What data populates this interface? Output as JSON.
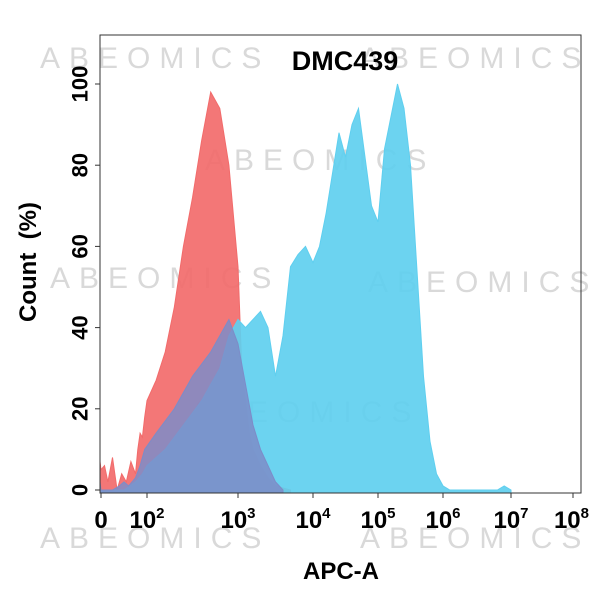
{
  "chart_data": {
    "type": "area",
    "title": "DMC439",
    "xlabel": "APC-A",
    "ylabel": "Count  (%)",
    "x_scale": "biexponential",
    "ylim": [
      0,
      100
    ],
    "y_ticks": [
      0,
      20,
      40,
      60,
      80,
      100
    ],
    "x_ticks": [
      {
        "base": "0",
        "exp": ""
      },
      {
        "base": "10",
        "exp": "2"
      },
      {
        "base": "10",
        "exp": "3"
      },
      {
        "base": "10",
        "exp": "4"
      },
      {
        "base": "10",
        "exp": "5"
      },
      {
        "base": "10",
        "exp": "6"
      },
      {
        "base": "10",
        "exp": "7"
      },
      {
        "base": "10",
        "exp": "8"
      }
    ],
    "watermark": "ABEOMICS",
    "grid": false,
    "legend": "none",
    "series": [
      {
        "color": "#f26b6b",
        "x": [
          -0.3,
          -0.15,
          0,
          0.15,
          0.3,
          0.5,
          0.7,
          0.9,
          1.1,
          1.3,
          1.5,
          1.6,
          1.7,
          1.8,
          1.9,
          2.0,
          2.1,
          2.2,
          2.3,
          2.4,
          2.5,
          2.6,
          2.7,
          2.8,
          2.9,
          3.0,
          3.05,
          3.1,
          3.15,
          3.2,
          3.3,
          3.4,
          3.5,
          3.6,
          3.7
        ],
        "y": [
          8,
          7,
          5,
          6,
          2,
          8,
          0,
          4,
          2,
          7,
          4,
          10,
          14,
          13,
          18,
          22,
          27,
          34,
          45,
          60,
          72,
          86,
          98,
          94,
          80,
          55,
          30,
          22,
          14,
          10,
          6,
          3,
          1,
          0.5,
          0
        ]
      },
      {
        "color": "#5fcfef",
        "x": [
          -0.3,
          0,
          0.5,
          1.0,
          1.5,
          1.8,
          2.0,
          2.2,
          2.4,
          2.6,
          2.7,
          2.8,
          2.9,
          3.0,
          3.1,
          3.2,
          3.3,
          3.4,
          3.5,
          3.6,
          3.7,
          3.8,
          3.9,
          4.0,
          4.1,
          4.2,
          4.3,
          4.4,
          4.5,
          4.6,
          4.7,
          4.8,
          4.9,
          5.0,
          5.1,
          5.2,
          5.3,
          5.4,
          5.5,
          5.6,
          5.7,
          5.8,
          5.9,
          6.0,
          6.1,
          6.2,
          6.5,
          6.8,
          6.9,
          7.0
        ],
        "y": [
          0,
          0,
          0,
          0,
          2,
          4,
          6,
          10,
          16,
          22,
          26,
          30,
          38,
          42,
          40,
          42,
          44,
          40,
          28,
          38,
          55,
          58,
          60,
          56,
          60,
          68,
          78,
          88,
          82,
          90,
          94,
          82,
          70,
          66,
          84,
          92,
          100,
          94,
          80,
          54,
          28,
          12,
          4,
          1,
          0,
          0,
          0,
          0,
          1,
          0
        ]
      },
      {
        "color": "#7d8cc8",
        "x": [
          -0.3,
          0,
          0.5,
          0.8,
          1.0,
          1.2,
          1.5,
          1.7,
          1.9,
          2.1,
          2.3,
          2.5,
          2.7,
          2.9,
          3.0,
          3.1,
          3.2,
          3.3,
          3.4,
          3.5,
          3.6
        ],
        "y": [
          2,
          0,
          0,
          1,
          2,
          1,
          3,
          6,
          10,
          14,
          20,
          28,
          34,
          42,
          36,
          26,
          16,
          10,
          6,
          2,
          0
        ]
      }
    ]
  }
}
